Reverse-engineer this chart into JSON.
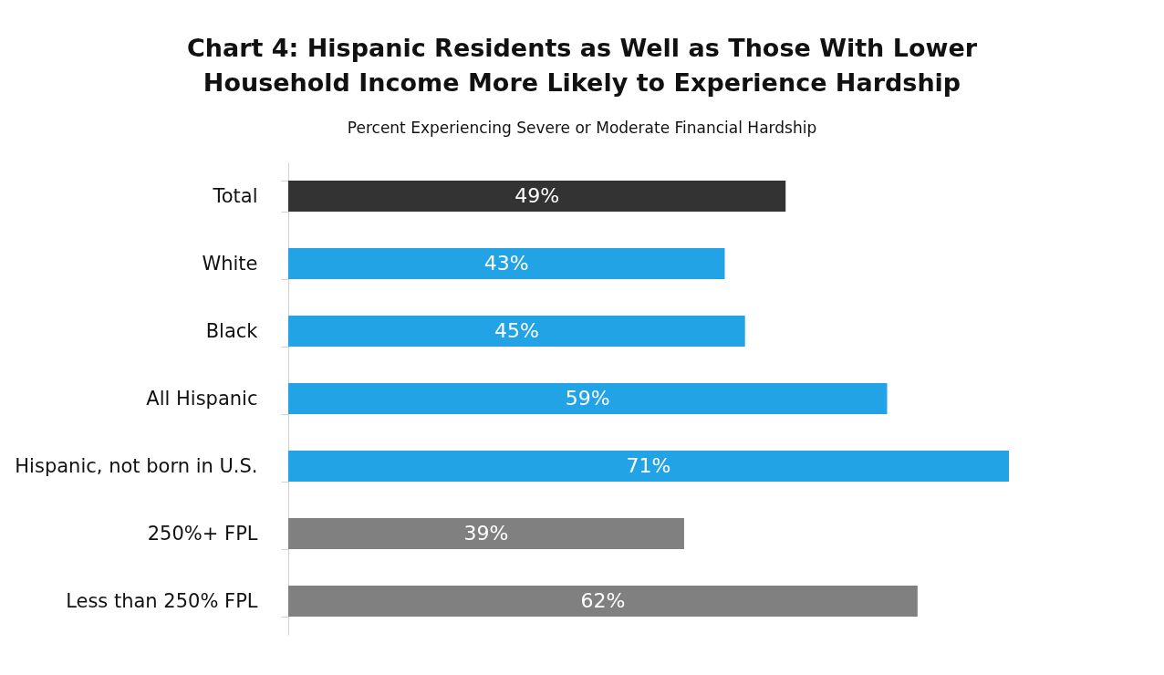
{
  "chart_data": {
    "type": "bar",
    "orientation": "horizontal",
    "title": "Chart 4: Hispanic Residents as Well as Those With Lower Household Income More Likely to Experience Hardship",
    "subtitle": "Percent Experiencing Severe or Moderate Financial Hardship",
    "categories": [
      "Total",
      "White",
      "Black",
      "All Hispanic",
      "Hispanic, not born in U.S.",
      "250%+ FPL",
      "Less than 250% FPL"
    ],
    "values": [
      49,
      43,
      45,
      59,
      71,
      39,
      62
    ],
    "colors": [
      "#333333",
      "#22a3e6",
      "#22a3e6",
      "#22a3e6",
      "#22a3e6",
      "#808080",
      "#808080"
    ],
    "value_labels": [
      "49%",
      "43%",
      "45%",
      "59%",
      "71%",
      "39%",
      "62%"
    ],
    "tick_labels": "y"
  }
}
